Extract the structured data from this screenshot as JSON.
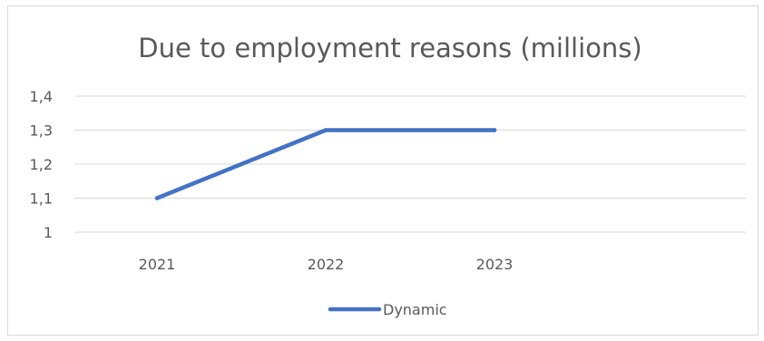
{
  "chart_data": {
    "type": "line",
    "title": "Due to employment reasons (millions)",
    "categories": [
      "2021",
      "2022",
      "2023"
    ],
    "series": [
      {
        "name": "Dynamic",
        "values": [
          1.1,
          1.3,
          1.3
        ],
        "color": "#4472c4"
      }
    ],
    "y_ticks": [
      "1",
      "1,1",
      "1,2",
      "1,3",
      "1,4"
    ],
    "ylim": [
      1,
      1.4
    ],
    "grid": true,
    "legend_position": "bottom"
  }
}
